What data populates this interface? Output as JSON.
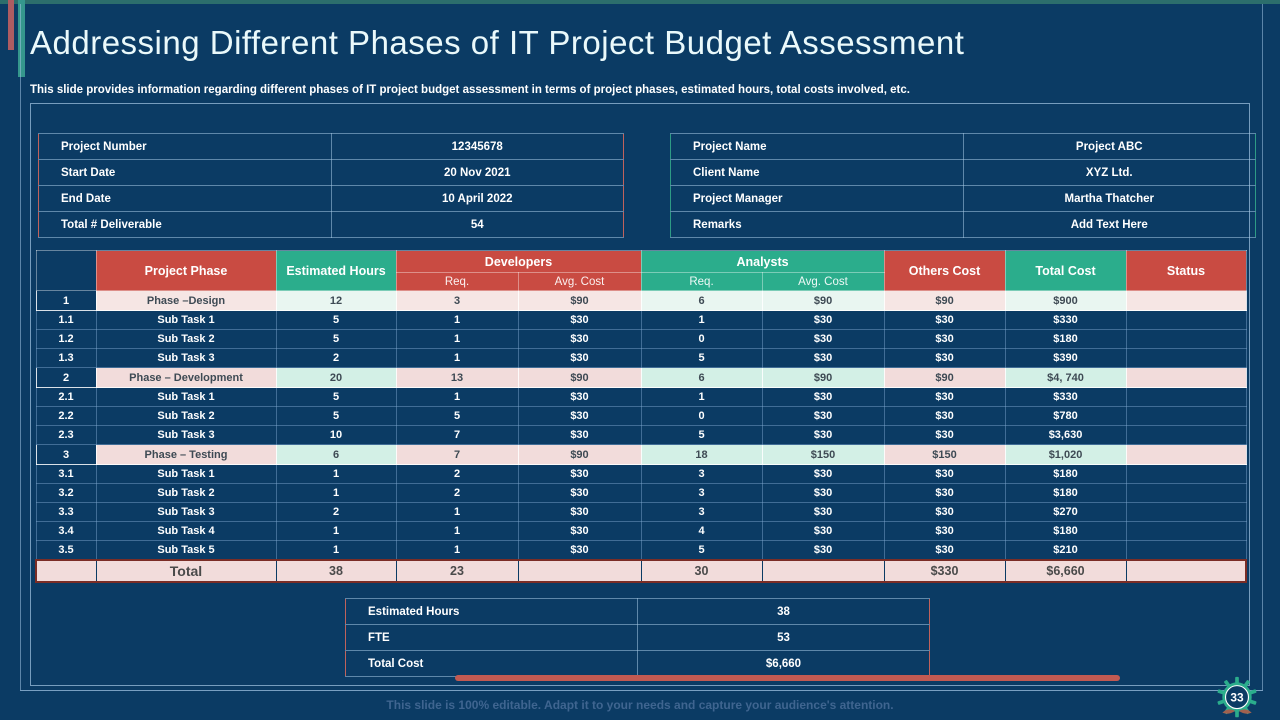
{
  "slide": {
    "title": "Addressing Different Phases of IT Project Budget Assessment",
    "subtitle": "This slide provides information regarding different phases of IT project budget assessment in terms of project phases, estimated hours, total costs involved, etc.",
    "footer": "This slide is 100% editable. Adapt it to your needs and capture your audience's attention.",
    "page_number": "33"
  },
  "colors": {
    "background": "#0B3B64",
    "accent_red": "#C94B42",
    "accent_teal": "#2BAD8C",
    "pink_cell": "#F2DCDB",
    "mint_cell": "#D3F0E6",
    "info_border_red": "#C0625C",
    "info_border_teal": "#2E9B85",
    "total_row_border": "#7B2D26"
  },
  "project_info_left": {
    "rows": [
      {
        "label": "Project Number",
        "value": "12345678"
      },
      {
        "label": "Start Date",
        "value": "20 Nov 2021"
      },
      {
        "label": "End Date",
        "value": "10 April 2022"
      },
      {
        "label": "Total # Deliverable",
        "value": "54"
      }
    ]
  },
  "project_info_right": {
    "rows": [
      {
        "label": "Project Name",
        "value": "Project ABC"
      },
      {
        "label": "Client Name",
        "value": "XYZ  Ltd."
      },
      {
        "label": "Project Manager",
        "value": "Martha Thatcher"
      },
      {
        "label": "Remarks",
        "value": "Add Text Here"
      }
    ]
  },
  "budget_table": {
    "header": {
      "project_phase": "Project Phase",
      "estimated_hours": "Estimated Hours",
      "developers": "Developers",
      "analysts": "Analysts",
      "req": "Req.",
      "avg_cost": "Avg. Cost",
      "others_cost": "Others Cost",
      "total_cost": "Total Cost",
      "status": "Status"
    },
    "rows": [
      {
        "type": "phase",
        "num": "1",
        "phase": "Phase –Design",
        "hours": "12",
        "dev_req": "3",
        "dev_avg": "$90",
        "ana_req": "6",
        "ana_avg": "$90",
        "others": "$90",
        "total": "$900",
        "status": ""
      },
      {
        "type": "sub",
        "num": "1.1",
        "phase": "Sub Task 1",
        "hours": "5",
        "dev_req": "1",
        "dev_avg": "$30",
        "ana_req": "1",
        "ana_avg": "$30",
        "others": "$30",
        "total": "$330",
        "status": ""
      },
      {
        "type": "sub",
        "num": "1.2",
        "phase": "Sub Task 2",
        "hours": "5",
        "dev_req": "1",
        "dev_avg": "$30",
        "ana_req": "0",
        "ana_avg": "$30",
        "others": "$30",
        "total": "$180",
        "status": ""
      },
      {
        "type": "sub",
        "num": "1.3",
        "phase": "Sub Task 3",
        "hours": "2",
        "dev_req": "1",
        "dev_avg": "$30",
        "ana_req": "5",
        "ana_avg": "$30",
        "others": "$30",
        "total": "$390",
        "status": ""
      },
      {
        "type": "phase",
        "num": "2",
        "phase": "Phase – Development",
        "hours": "20",
        "dev_req": "13",
        "dev_avg": "$90",
        "ana_req": "6",
        "ana_avg": "$90",
        "others": "$90",
        "total": "$4, 740",
        "status": ""
      },
      {
        "type": "sub",
        "num": "2.1",
        "phase": "Sub Task 1",
        "hours": "5",
        "dev_req": "1",
        "dev_avg": "$30",
        "ana_req": "1",
        "ana_avg": "$30",
        "others": "$30",
        "total": "$330",
        "status": ""
      },
      {
        "type": "sub",
        "num": "2.2",
        "phase": "Sub Task 2",
        "hours": "5",
        "dev_req": "5",
        "dev_avg": "$30",
        "ana_req": "0",
        "ana_avg": "$30",
        "others": "$30",
        "total": "$780",
        "status": ""
      },
      {
        "type": "sub",
        "num": "2.3",
        "phase": "Sub Task 3",
        "hours": "10",
        "dev_req": "7",
        "dev_avg": "$30",
        "ana_req": "5",
        "ana_avg": "$30",
        "others": "$30",
        "total": "$3,630",
        "status": ""
      },
      {
        "type": "phase",
        "num": "3",
        "phase": "Phase – Testing",
        "hours": "6",
        "dev_req": "7",
        "dev_avg": "$90",
        "ana_req": "18",
        "ana_avg": "$150",
        "others": "$150",
        "total": "$1,020",
        "status": ""
      },
      {
        "type": "sub",
        "num": "3.1",
        "phase": "Sub Task 1",
        "hours": "1",
        "dev_req": "2",
        "dev_avg": "$30",
        "ana_req": "3",
        "ana_avg": "$30",
        "others": "$30",
        "total": "$180",
        "status": ""
      },
      {
        "type": "sub",
        "num": "3.2",
        "phase": "Sub Task 2",
        "hours": "1",
        "dev_req": "2",
        "dev_avg": "$30",
        "ana_req": "3",
        "ana_avg": "$30",
        "others": "$30",
        "total": "$180",
        "status": ""
      },
      {
        "type": "sub",
        "num": "3.3",
        "phase": "Sub Task 3",
        "hours": "2",
        "dev_req": "1",
        "dev_avg": "$30",
        "ana_req": "3",
        "ana_avg": "$30",
        "others": "$30",
        "total": "$270",
        "status": ""
      },
      {
        "type": "sub",
        "num": "3.4",
        "phase": "Sub Task 4",
        "hours": "1",
        "dev_req": "1",
        "dev_avg": "$30",
        "ana_req": "4",
        "ana_avg": "$30",
        "others": "$30",
        "total": "$180",
        "status": ""
      },
      {
        "type": "sub",
        "num": "3.5",
        "phase": "Sub Task 5",
        "hours": "1",
        "dev_req": "1",
        "dev_avg": "$30",
        "ana_req": "5",
        "ana_avg": "$30",
        "others": "$30",
        "total": "$210",
        "status": ""
      }
    ],
    "total": {
      "label": "Total",
      "num": "",
      "hours": "38",
      "dev_req": "23",
      "dev_avg": "",
      "ana_req": "30",
      "ana_avg": "",
      "others": "$330",
      "total": "$6,660",
      "status": ""
    }
  },
  "summary_table": {
    "rows": [
      {
        "label": "Estimated Hours",
        "value": "38"
      },
      {
        "label": "FTE",
        "value": "53"
      },
      {
        "label": "Total Cost",
        "value": "$6,660"
      }
    ]
  }
}
